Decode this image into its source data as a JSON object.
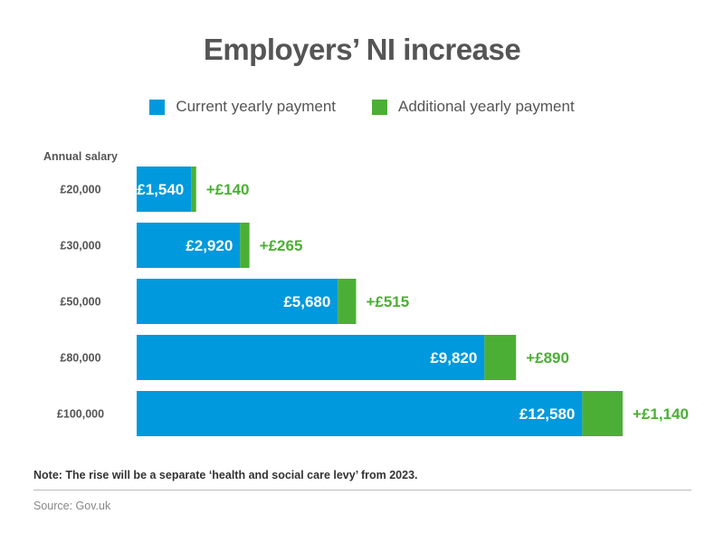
{
  "chart_data": {
    "type": "bar",
    "orientation": "horizontal",
    "stacked": true,
    "title": "Employers’ NI increase",
    "category_axis_label": "Annual salary",
    "categories": [
      "£20,000",
      "£30,000",
      "£50,000",
      "£80,000",
      "£100,000"
    ],
    "series": [
      {
        "name": "Current yearly payment",
        "values": [
          1540,
          2920,
          5680,
          9820,
          12580
        ],
        "labels": [
          "£1,540",
          "£2,920",
          "£5,680",
          "£9,820",
          "£12,580"
        ],
        "color": "#0099dd"
      },
      {
        "name": "Additional yearly payment",
        "values": [
          140,
          265,
          515,
          890,
          1140
        ],
        "labels": [
          "+£140",
          "+£265",
          "+£515",
          "+£890",
          "+£1,140"
        ],
        "color": "#4caf35"
      }
    ],
    "legend_position": "top-center",
    "grid": false,
    "xlim": [
      0,
      13720
    ]
  },
  "note": "Note: The rise will be a separate ‘health and social care levy’ from 2023.",
  "source": "Source: Gov.uk",
  "colors": {
    "title_text": "#555555",
    "axis_text": "#555555"
  }
}
